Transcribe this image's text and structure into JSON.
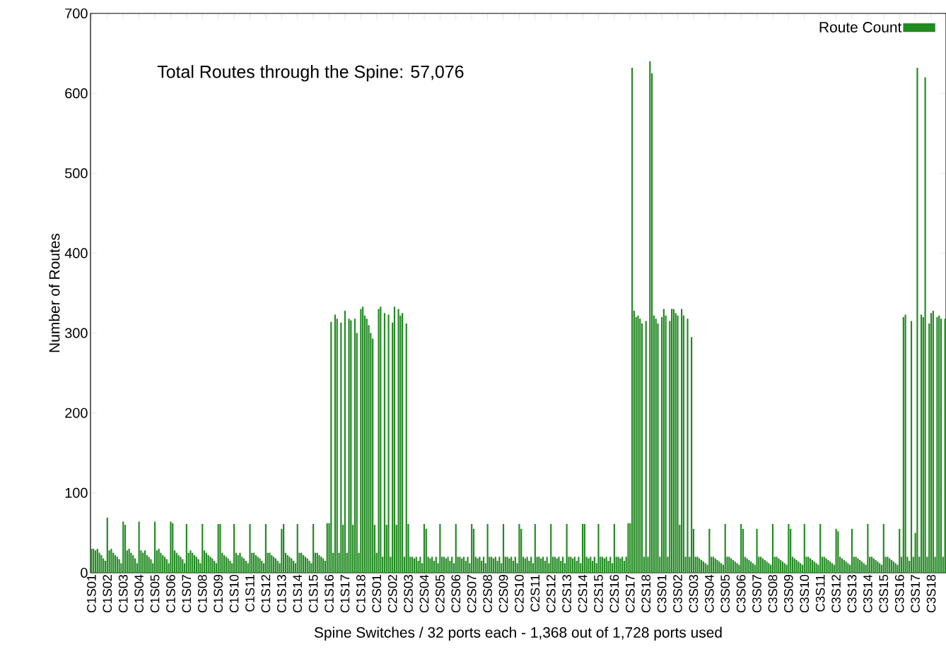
{
  "chart_data": {
    "type": "bar",
    "xlabel": "Spine Switches / 32 ports each - 1,368 out of 1,728 ports used",
    "ylabel": "Number of Routes",
    "annotations": [
      "Total Routes through the Spine: 57,076"
    ],
    "legend": "top right",
    "ylim": [
      0,
      700
    ],
    "yticks": [
      0,
      100,
      200,
      300,
      400,
      500,
      600,
      700
    ],
    "categories": [
      "C1S01",
      null,
      null,
      null,
      null,
      null,
      null,
      null,
      "C1S02",
      null,
      null,
      null,
      null,
      null,
      null,
      null,
      "C1S03",
      null,
      null,
      null,
      null,
      null,
      null,
      null,
      "C1S04",
      null,
      null,
      null,
      null,
      null,
      null,
      null,
      "C1S05",
      null,
      null,
      null,
      null,
      null,
      null,
      null,
      "C1S06",
      null,
      null,
      null,
      null,
      null,
      null,
      null,
      "C1S07",
      null,
      null,
      null,
      null,
      null,
      null,
      null,
      "C1S08",
      null,
      null,
      null,
      null,
      null,
      null,
      null,
      "C1S09",
      null,
      null,
      null,
      null,
      null,
      null,
      null,
      "C1S10",
      null,
      null,
      null,
      null,
      null,
      null,
      null,
      "C1S11",
      null,
      null,
      null,
      null,
      null,
      null,
      null,
      "C1S12",
      null,
      null,
      null,
      null,
      null,
      null,
      null,
      "C1S13",
      null,
      null,
      null,
      null,
      null,
      null,
      null,
      "C1S14",
      null,
      null,
      null,
      null,
      null,
      null,
      null,
      "C1S15",
      null,
      null,
      null,
      null,
      null,
      null,
      null,
      "C1S16",
      null,
      null,
      null,
      null,
      null,
      null,
      null,
      "C1S17",
      null,
      null,
      null,
      null,
      null,
      null,
      null,
      "C1S18",
      null,
      null,
      null,
      null,
      null,
      null,
      null,
      "C2S01",
      null,
      null,
      null,
      null,
      null,
      null,
      null,
      "C2S02",
      null,
      null,
      null,
      null,
      null,
      null,
      null,
      "C2S03",
      null,
      null,
      null,
      null,
      null,
      null,
      null,
      "C2S04",
      null,
      null,
      null,
      null,
      null,
      null,
      null,
      "C2S05",
      null,
      null,
      null,
      null,
      null,
      null,
      null,
      "C2S06",
      null,
      null,
      null,
      null,
      null,
      null,
      null,
      "C2S07",
      null,
      null,
      null,
      null,
      null,
      null,
      null,
      "C2S08",
      null,
      null,
      null,
      null,
      null,
      null,
      null,
      "C2S09",
      null,
      null,
      null,
      null,
      null,
      null,
      null,
      "C2S10",
      null,
      null,
      null,
      null,
      null,
      null,
      null,
      "C2S11",
      null,
      null,
      null,
      null,
      null,
      null,
      null,
      "C2S12",
      null,
      null,
      null,
      null,
      null,
      null,
      null,
      "C2S13",
      null,
      null,
      null,
      null,
      null,
      null,
      null,
      "C2S14",
      null,
      null,
      null,
      null,
      null,
      null,
      null,
      "C2S15",
      null,
      null,
      null,
      null,
      null,
      null,
      null,
      "C2S16",
      null,
      null,
      null,
      null,
      null,
      null,
      null,
      "C2S17",
      null,
      null,
      null,
      null,
      null,
      null,
      null,
      "C2S18",
      null,
      null,
      null,
      null,
      null,
      null,
      null,
      "C3S01",
      null,
      null,
      null,
      null,
      null,
      null,
      null,
      "C3S02",
      null,
      null,
      null,
      null,
      null,
      null,
      null,
      "C3S03",
      null,
      null,
      null,
      null,
      null,
      null,
      null,
      "C3S04",
      null,
      null,
      null,
      null,
      null,
      null,
      null,
      "C3S05",
      null,
      null,
      null,
      null,
      null,
      null,
      null,
      "C3S06",
      null,
      null,
      null,
      null,
      null,
      null,
      null,
      "C3S07",
      null,
      null,
      null,
      null,
      null,
      null,
      null,
      "C3S08",
      null,
      null,
      null,
      null,
      null,
      null,
      null,
      "C3S09",
      null,
      null,
      null,
      null,
      null,
      null,
      null,
      "C3S10",
      null,
      null,
      null,
      null,
      null,
      null,
      null,
      "C3S11",
      null,
      null,
      null,
      null,
      null,
      null,
      null,
      "C3S12",
      null,
      null,
      null,
      null,
      null,
      null,
      null,
      "C3S13",
      null,
      null,
      null,
      null,
      null,
      null,
      null,
      "C3S14",
      null,
      null,
      null,
      null,
      null,
      null,
      null,
      "C3S15",
      null,
      null,
      null,
      null,
      null,
      null,
      null,
      "C3S16",
      null,
      null,
      null,
      null,
      null,
      null,
      null,
      "C3S17",
      null,
      null,
      null,
      null,
      null,
      null,
      null,
      "C3S18",
      null,
      null,
      null,
      null,
      null,
      null,
      null
    ],
    "series": [
      {
        "name": "Route Count",
        "color": "#228b22",
        "values": [
          30,
          30,
          28,
          30,
          25,
          22,
          18,
          15,
          69,
          28,
          30,
          25,
          22,
          20,
          17,
          12,
          64,
          60,
          28,
          30,
          25,
          22,
          18,
          12,
          64,
          28,
          25,
          28,
          22,
          20,
          17,
          12,
          64,
          28,
          30,
          25,
          22,
          20,
          17,
          12,
          64,
          62,
          28,
          25,
          22,
          20,
          17,
          12,
          61,
          25,
          28,
          25,
          22,
          20,
          17,
          12,
          61,
          28,
          25,
          22,
          20,
          18,
          15,
          12,
          61,
          61,
          25,
          22,
          20,
          18,
          15,
          12,
          61,
          25,
          22,
          25,
          20,
          18,
          15,
          12,
          61,
          25,
          25,
          22,
          20,
          18,
          15,
          12,
          61,
          25,
          25,
          22,
          20,
          18,
          15,
          12,
          55,
          61,
          25,
          22,
          20,
          18,
          15,
          12,
          61,
          25,
          25,
          22,
          20,
          18,
          15,
          12,
          61,
          25,
          25,
          22,
          20,
          18,
          15,
          62,
          62,
          314,
          25,
          323,
          318,
          25,
          313,
          60,
          328,
          25,
          318,
          316,
          60,
          318,
          300,
          25,
          330,
          333,
          322,
          318,
          310,
          300,
          293,
          60,
          25,
          330,
          333,
          20,
          325,
          60,
          323,
          20,
          313,
          333,
          60,
          330,
          322,
          325,
          20,
          312,
          61,
          20,
          20,
          18,
          20,
          15,
          20,
          12,
          61,
          55,
          20,
          18,
          20,
          15,
          20,
          12,
          61,
          20,
          20,
          18,
          20,
          15,
          20,
          12,
          61,
          20,
          20,
          18,
          20,
          15,
          20,
          12,
          61,
          55,
          20,
          18,
          20,
          15,
          20,
          12,
          61,
          20,
          20,
          18,
          20,
          15,
          20,
          12,
          61,
          20,
          20,
          18,
          20,
          15,
          20,
          12,
          61,
          55,
          20,
          18,
          20,
          15,
          20,
          12,
          61,
          20,
          20,
          18,
          20,
          15,
          20,
          12,
          61,
          20,
          20,
          18,
          20,
          15,
          20,
          12,
          61,
          20,
          20,
          18,
          20,
          15,
          20,
          12,
          61,
          61,
          20,
          18,
          20,
          15,
          20,
          12,
          61,
          20,
          20,
          18,
          20,
          15,
          20,
          12,
          61,
          20,
          20,
          18,
          20,
          15,
          20,
          62,
          62,
          632,
          328,
          320,
          322,
          318,
          312,
          20,
          315,
          20,
          640,
          625,
          322,
          318,
          312,
          20,
          320,
          330,
          322,
          20,
          315,
          330,
          330,
          325,
          322,
          60,
          330,
          322,
          20,
          318,
          20,
          295,
          55,
          20,
          20,
          18,
          16,
          14,
          12,
          10,
          55,
          20,
          20,
          18,
          16,
          14,
          12,
          10,
          61,
          20,
          20,
          18,
          16,
          14,
          12,
          10,
          61,
          55,
          20,
          18,
          16,
          14,
          12,
          10,
          55,
          20,
          20,
          18,
          16,
          14,
          12,
          10,
          61,
          20,
          20,
          18,
          16,
          14,
          12,
          10,
          61,
          55,
          20,
          18,
          16,
          14,
          12,
          10,
          61,
          20,
          20,
          18,
          16,
          14,
          12,
          10,
          61,
          20,
          20,
          18,
          16,
          14,
          12,
          10,
          55,
          52,
          20,
          18,
          16,
          14,
          12,
          10,
          55,
          20,
          20,
          18,
          16,
          14,
          12,
          10,
          61,
          20,
          20,
          18,
          16,
          14,
          12,
          10,
          61,
          20,
          20,
          18,
          16,
          14,
          12,
          10,
          55,
          20,
          320,
          323,
          20,
          15,
          315,
          20,
          50,
          632,
          20,
          323,
          320,
          620,
          20,
          312,
          325,
          328,
          20,
          320,
          322,
          318,
          20,
          318
        ]
      }
    ]
  }
}
